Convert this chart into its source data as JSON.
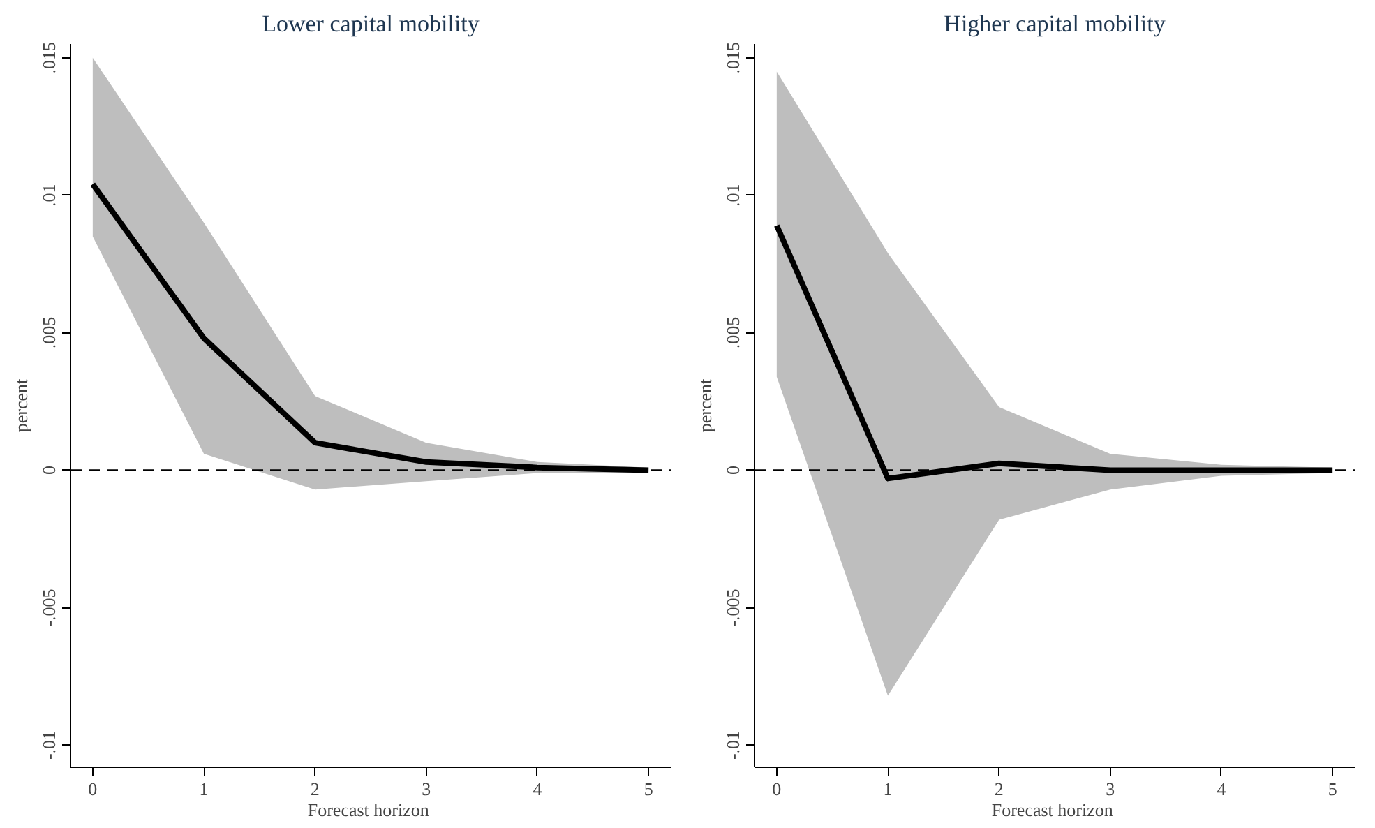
{
  "chart_data": [
    {
      "type": "line",
      "title": "Lower capital mobility",
      "xlabel": "Forecast  horizon",
      "ylabel": "percent",
      "x": [
        0,
        1,
        2,
        3,
        4,
        5
      ],
      "series": [
        {
          "color": "#000000",
          "values": [
            0.0104,
            0.0048,
            0.001,
            0.0003,
            0.0001,
            0.0
          ],
          "lower": [
            0.0085,
            0.0006,
            -0.0007,
            -0.0004,
            -0.0001,
            -0.0001
          ],
          "upper": [
            0.015,
            0.009,
            0.0027,
            0.001,
            0.0003,
            0.0001
          ]
        }
      ],
      "xlim": [
        -0.2,
        5.2
      ],
      "xticks": [
        0,
        1,
        2,
        3,
        4,
        5
      ],
      "ylim": [
        -0.0108,
        0.0155
      ],
      "yticks": [
        {
          "value": -0.01,
          "label": "-.01"
        },
        {
          "value": -0.005,
          "label": "-.005"
        },
        0,
        {
          "value": 0.005,
          "label": ".005"
        },
        {
          "value": 0.01,
          "label": ".01"
        },
        {
          "value": 0.015,
          "label": ".015"
        }
      ],
      "ref_lines": [
        {
          "axis": "y",
          "value": 0,
          "line_style": "dashed",
          "color": "#000000"
        }
      ],
      "grid": false,
      "marker": "none"
    },
    {
      "type": "line",
      "title": "Higher capital mobility",
      "xlabel": "Forecast  horizon",
      "ylabel": "percent",
      "x": [
        0,
        1,
        2,
        3,
        4,
        5
      ],
      "series": [
        {
          "color": "#000000",
          "values": [
            0.0089,
            -0.0003,
            0.00025,
            0.0,
            0.0,
            0.0
          ],
          "lower": [
            0.0034,
            -0.0082,
            -0.0018,
            -0.0007,
            -0.0002,
            -0.0001
          ],
          "upper": [
            0.0145,
            0.0079,
            0.0023,
            0.0006,
            0.0002,
            0.0001
          ]
        }
      ],
      "xlim": [
        -0.2,
        5.2
      ],
      "xticks": [
        0,
        1,
        2,
        3,
        4,
        5
      ],
      "ylim": [
        -0.0108,
        0.0155
      ],
      "yticks": [
        {
          "value": -0.01,
          "label": "-.01"
        },
        {
          "value": -0.005,
          "label": "-.005"
        },
        0,
        {
          "value": 0.005,
          "label": ".005"
        },
        {
          "value": 0.01,
          "label": ".01"
        },
        {
          "value": 0.015,
          "label": ".015"
        }
      ],
      "ref_lines": [
        {
          "axis": "y",
          "value": 0,
          "line_style": "dashed",
          "color": "#000000"
        }
      ],
      "grid": false,
      "marker": "none"
    }
  ]
}
